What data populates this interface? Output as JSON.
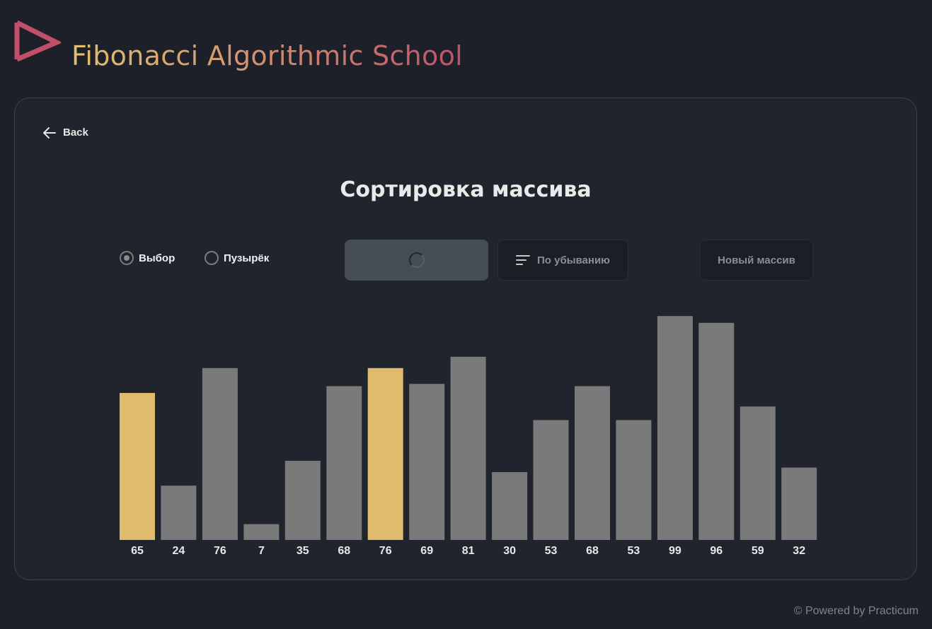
{
  "header": {
    "title": "Fibonacci Algorithmic School",
    "logo_icon": "logo-triangle-icon",
    "colors": {
      "gradient_start": "#e2bf6e",
      "gradient_end": "#c0506a",
      "logo": "#c0506a"
    }
  },
  "panel": {
    "back_label": "Back",
    "back_icon": "arrow-left-icon",
    "page_title": "Сортировка массива",
    "radio_options": [
      {
        "label": "Выбор",
        "selected": true
      },
      {
        "label": "Пузырёк",
        "selected": false
      }
    ],
    "buttons": {
      "sort_ascending_state": "loading",
      "sort_descending_label": "По убыванию",
      "sort_descending_icon": "sort-lines-icon",
      "new_array_label": "Новый массив"
    }
  },
  "chart_data": {
    "type": "bar",
    "categories": [
      "65",
      "24",
      "76",
      "7",
      "35",
      "68",
      "76",
      "69",
      "81",
      "30",
      "53",
      "68",
      "53",
      "99",
      "96",
      "59",
      "32"
    ],
    "values": [
      65,
      24,
      76,
      7,
      35,
      68,
      76,
      69,
      81,
      30,
      53,
      68,
      53,
      99,
      96,
      59,
      32
    ],
    "highlighted_indices": [
      0,
      6
    ],
    "colors": {
      "default": "#7a7a7a",
      "highlighted": "#e0bb6e"
    }
  },
  "footer": {
    "text": "© Powered by Practicum"
  }
}
